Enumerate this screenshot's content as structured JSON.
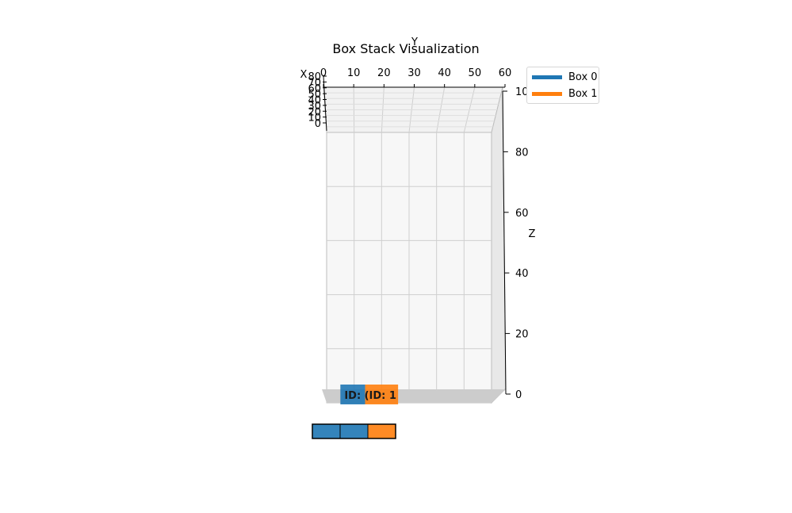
{
  "chart_data": {
    "type": "3d-bar",
    "title": "Box Stack Visualization",
    "xlabel": "X",
    "ylabel": "Y",
    "zlabel": "Z",
    "x_ticks": [
      "0",
      "10",
      "20",
      "30",
      "40",
      "50",
      "60",
      "70",
      "80"
    ],
    "y_ticks": [
      "0",
      "10",
      "20",
      "30",
      "40",
      "50",
      "60"
    ],
    "z_ticks": [
      "0",
      "20",
      "40",
      "60",
      "80",
      "100"
    ],
    "xlim": [
      0,
      80
    ],
    "ylim": [
      0,
      60
    ],
    "zlim": [
      0,
      100
    ],
    "grid": true,
    "legend_position": "top-right",
    "boxes": [
      {
        "name": "Box 0",
        "label": "ID: 0",
        "label_visible": "ID: (",
        "color": "#1f77b4",
        "y_start": 5,
        "y_end": 14
      },
      {
        "name": "Box 1",
        "label": "ID: 1",
        "label_visible": "ID: 1",
        "color": "#ff7f0e",
        "y_start": 14,
        "y_end": 26
      }
    ],
    "footprint_colors": [
      "#1f77b4",
      "#1f77b4",
      "#ff7f0e"
    ]
  },
  "legend": {
    "items": [
      {
        "label": "Box 0",
        "color": "#1f77b4"
      },
      {
        "label": "Box 1",
        "color": "#ff7f0e"
      }
    ]
  }
}
